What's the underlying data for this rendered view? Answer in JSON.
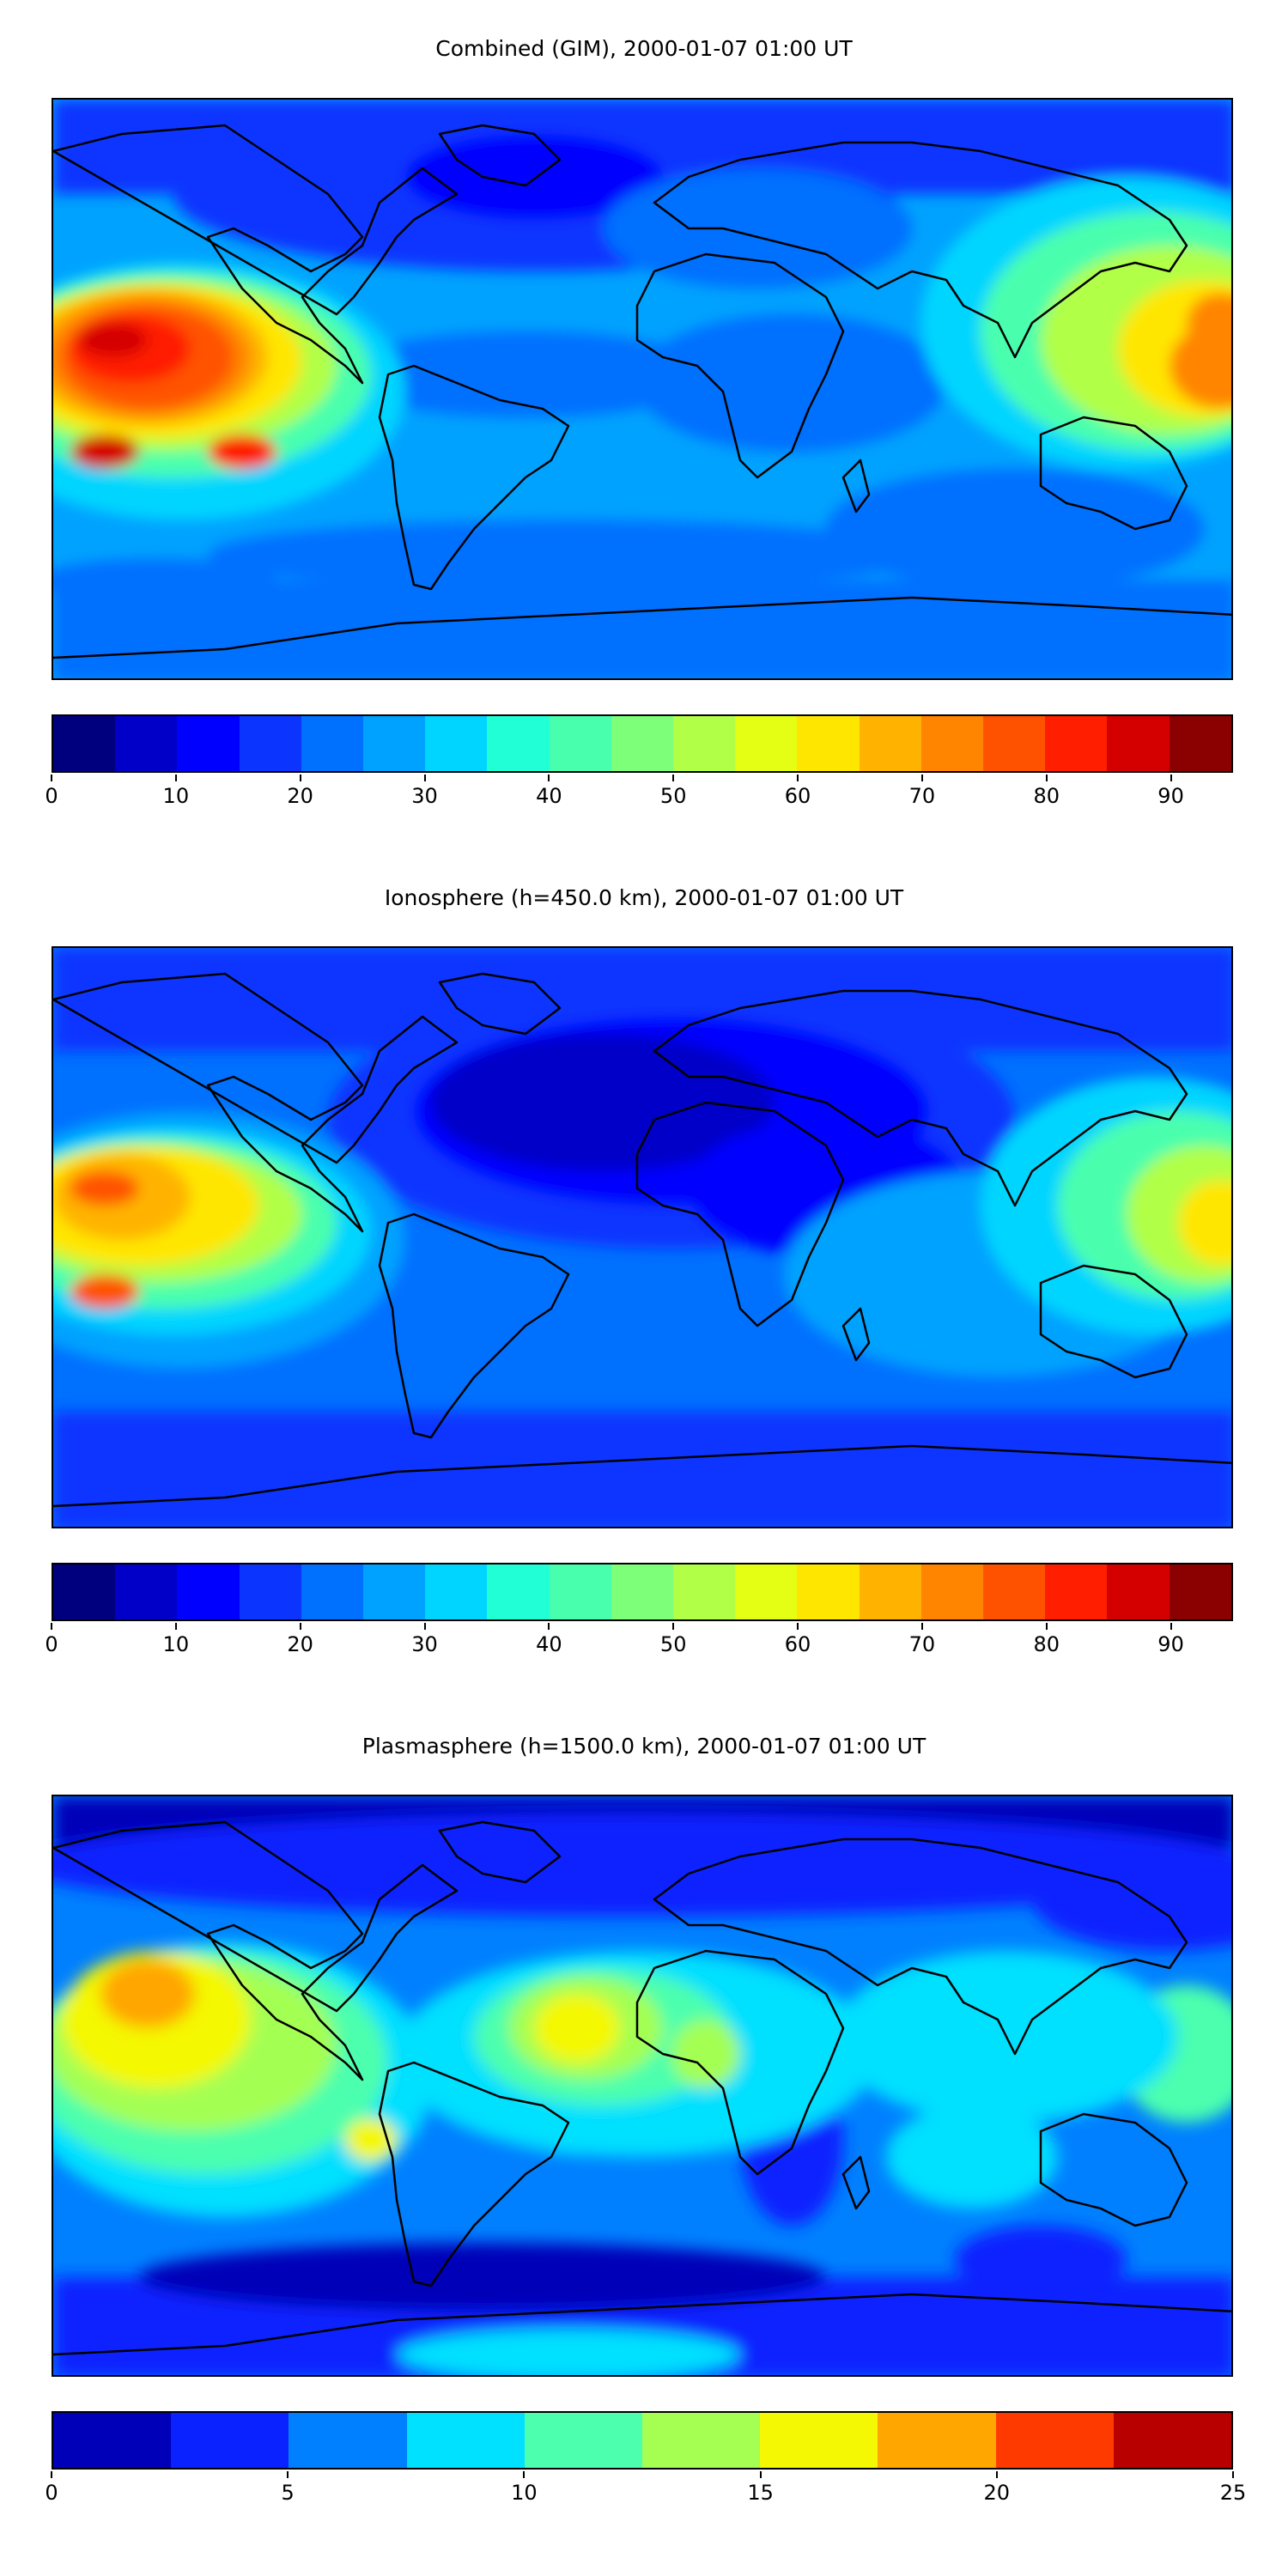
{
  "panels": [
    {
      "title": "Combined (GIM), 2000-01-07 01:00 UT",
      "colorbar": {
        "colors": [
          "#00007f",
          "#0000c8",
          "#0000ff",
          "#0b35ff",
          "#0070ff",
          "#00a2ff",
          "#00d5ff",
          "#20ffd5",
          "#48ffae",
          "#7dff7a",
          "#b1ff46",
          "#e4ff13",
          "#ffe600",
          "#ffb300",
          "#ff8500",
          "#ff5200",
          "#ff1f00",
          "#d40000",
          "#8b0000"
        ],
        "ticks": [
          "0",
          "10",
          "20",
          "30",
          "40",
          "50",
          "60",
          "70",
          "80",
          "90"
        ],
        "tick_values": [
          0,
          10,
          20,
          30,
          40,
          50,
          60,
          70,
          80,
          90
        ],
        "min": 0,
        "max": 95
      }
    },
    {
      "title": "Ionosphere  (h=450.0 km), 2000-01-07 01:00 UT",
      "colorbar": {
        "colors": [
          "#00007f",
          "#0000c8",
          "#0000ff",
          "#0b35ff",
          "#0070ff",
          "#00a2ff",
          "#00d5ff",
          "#20ffd5",
          "#48ffae",
          "#7dff7a",
          "#b1ff46",
          "#e4ff13",
          "#ffe600",
          "#ffb300",
          "#ff8500",
          "#ff5200",
          "#ff1f00",
          "#d40000",
          "#8b0000"
        ],
        "ticks": [
          "0",
          "10",
          "20",
          "30",
          "40",
          "50",
          "60",
          "70",
          "80",
          "90"
        ],
        "tick_values": [
          0,
          10,
          20,
          30,
          40,
          50,
          60,
          70,
          80,
          90
        ],
        "min": 0,
        "max": 95
      }
    },
    {
      "title": "Plasmasphere (h=1500.0 km), 2000-01-07 01:00 UT",
      "colorbar": {
        "colors": [
          "#0000b8",
          "#0a22ff",
          "#0080ff",
          "#00e0ff",
          "#4cffae",
          "#a4ff52",
          "#f4f802",
          "#ffa600",
          "#ff3a00",
          "#b80000"
        ],
        "ticks": [
          "0",
          "5",
          "10",
          "15",
          "20",
          "25"
        ],
        "tick_values": [
          0,
          5,
          10,
          15,
          20,
          25
        ],
        "min": 0,
        "max": 25
      }
    }
  ]
}
